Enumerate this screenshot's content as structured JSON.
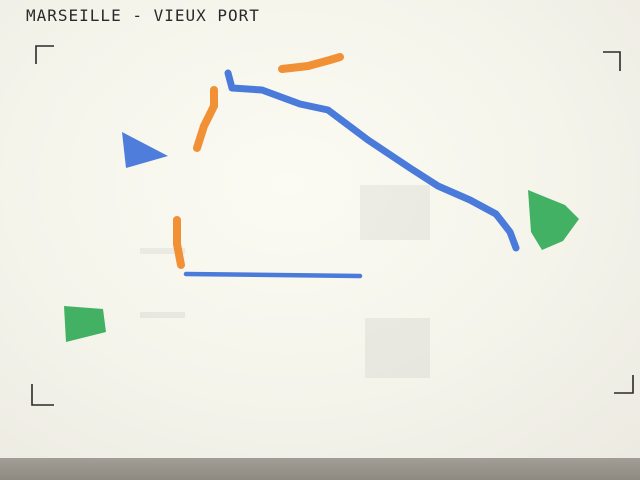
{
  "map": {
    "title": "MARSEILLE - VIEUX PORT"
  },
  "colors": {
    "blue_marker": "#3b6fd8",
    "orange_marker": "#f08a2a",
    "green_marker": "#2faa55",
    "ink": "#2a2a2a"
  }
}
